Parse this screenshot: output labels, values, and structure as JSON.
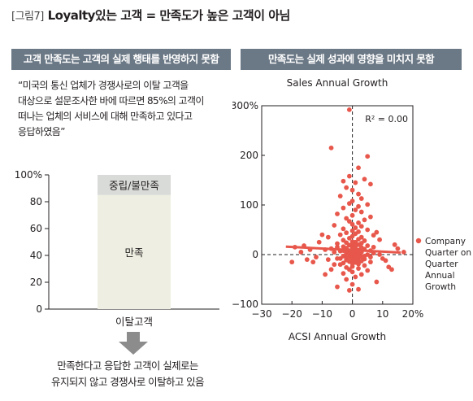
{
  "figure": {
    "label": "[그림7]",
    "title": "Loyalty있는 고객 = 만족도가 높은 고객이 아님"
  },
  "left_panel": {
    "banner": "고객 만족도는 고객의 실제 행태를 반영하지 못함",
    "quote_lines": [
      "“미국의 통신 업체가 경쟁사로의 이탈 고객을",
      "대상으로 설문조사한 바에 따르면 85%의 고객이",
      "떠나는 업체의 서비스에 대해 만족하고 있다고",
      "응답하였음”"
    ],
    "bottom_note_lines": [
      "만족한다고 응답한 고객이 실제로는",
      "유지되지 않고 경쟁사로 이탈하고 있음"
    ],
    "arrow_color": "#8c8c8c"
  },
  "right_panel": {
    "banner": "만족도는 실제 성과에 영향을 미치지 못함"
  },
  "chart_data": [
    {
      "type": "bar",
      "stacked": true,
      "categories": [
        "이탈고객"
      ],
      "series": [
        {
          "name": "만족",
          "values": [
            85
          ],
          "color": "#eeefe2"
        },
        {
          "name": "중립/불만족",
          "values": [
            15
          ],
          "color": "#d9dbd8"
        }
      ],
      "title": "",
      "xlabel": "",
      "ylabel": "",
      "ylim": [
        0,
        100
      ],
      "yticks": [
        0,
        20,
        40,
        60,
        80,
        100
      ],
      "ytick_labels": [
        "0",
        "20",
        "40",
        "60",
        "80",
        "100%"
      ],
      "grid": false
    },
    {
      "type": "scatter",
      "title": "Sales Annual Growth",
      "xlabel": "ACSI Annual Growth",
      "ylabel": "",
      "xlim": [
        -30,
        20
      ],
      "ylim": [
        -100,
        300
      ],
      "xticks": [
        -30,
        -20,
        -10,
        0,
        10,
        20
      ],
      "xtick_labels": [
        "−30",
        "−20",
        "−10",
        "0",
        "10",
        "20%"
      ],
      "yticks": [
        -100,
        0,
        100,
        200,
        300
      ],
      "ytick_labels": [
        "−100",
        "0",
        "100",
        "200",
        "300%"
      ],
      "annotation": "R² = 0.00",
      "legend": {
        "label_lines": [
          "Company",
          "Quarter on",
          "Quarter",
          "Annual",
          "Growth"
        ],
        "placement": "right"
      },
      "marker_color": "#e8574b",
      "trend_line": {
        "x": [
          -22,
          16
        ],
        "y": [
          16,
          4
        ],
        "color": "#e8574b"
      },
      "points": [
        [
          -1,
          292
        ],
        [
          -7,
          215
        ],
        [
          5,
          198
        ],
        [
          2,
          175
        ],
        [
          -1,
          158
        ],
        [
          4,
          152
        ],
        [
          -3,
          148
        ],
        [
          1,
          145
        ],
        [
          6,
          142
        ],
        [
          -2,
          135
        ],
        [
          0,
          130
        ],
        [
          2,
          122
        ],
        [
          -4,
          118
        ],
        [
          3,
          113
        ],
        [
          0,
          108
        ],
        [
          -1,
          103
        ],
        [
          5,
          101
        ],
        [
          2,
          97
        ],
        [
          -3,
          94
        ],
        [
          1,
          90
        ],
        [
          3,
          86
        ],
        [
          -5,
          82
        ],
        [
          0,
          79
        ],
        [
          6,
          76
        ],
        [
          -2,
          73
        ],
        [
          4,
          70
        ],
        [
          -1,
          67
        ],
        [
          2,
          64
        ],
        [
          0,
          61
        ],
        [
          -6,
          59
        ],
        [
          3,
          57
        ],
        [
          1,
          54
        ],
        [
          -3,
          52
        ],
        [
          5,
          50
        ],
        [
          0,
          48
        ],
        [
          2,
          46
        ],
        [
          -2,
          44
        ],
        [
          1,
          42
        ],
        [
          -4,
          40
        ],
        [
          7,
          39
        ],
        [
          0,
          37
        ],
        [
          3,
          35
        ],
        [
          -1,
          33
        ],
        [
          2,
          31
        ],
        [
          -3,
          29
        ],
        [
          4,
          28
        ],
        [
          0,
          26
        ],
        [
          1,
          25
        ],
        [
          -2,
          24
        ],
        [
          3,
          23
        ],
        [
          -5,
          22
        ],
        [
          0,
          21
        ],
        [
          2,
          20
        ],
        [
          -1,
          19
        ],
        [
          5,
          18
        ],
        [
          1,
          17
        ],
        [
          -3,
          16
        ],
        [
          0,
          15
        ],
        [
          3,
          14
        ],
        [
          -2,
          13
        ],
        [
          1,
          12
        ],
        [
          -7,
          12
        ],
        [
          4,
          11
        ],
        [
          0,
          10
        ],
        [
          2,
          9
        ],
        [
          -1,
          8
        ],
        [
          6,
          8
        ],
        [
          -4,
          7
        ],
        [
          1,
          6
        ],
        [
          3,
          5
        ],
        [
          0,
          4
        ],
        [
          -2,
          3
        ],
        [
          2,
          2
        ],
        [
          -1,
          1
        ],
        [
          5,
          0
        ],
        [
          0,
          -1
        ],
        [
          1,
          -2
        ],
        [
          -3,
          -3
        ],
        [
          3,
          -4
        ],
        [
          -1,
          -5
        ],
        [
          2,
          -6
        ],
        [
          0,
          -7
        ],
        [
          -5,
          -8
        ],
        [
          4,
          -9
        ],
        [
          1,
          -10
        ],
        [
          -2,
          -11
        ],
        [
          0,
          -12
        ],
        [
          3,
          -13
        ],
        [
          -1,
          -14
        ],
        [
          6,
          -15
        ],
        [
          1,
          -16
        ],
        [
          -3,
          -17
        ],
        [
          0,
          -18
        ],
        [
          2,
          -19
        ],
        [
          -4,
          -20
        ],
        [
          4,
          -22
        ],
        [
          0,
          -24
        ],
        [
          -2,
          -26
        ],
        [
          2,
          -28
        ],
        [
          -1,
          -30
        ],
        [
          5,
          -32
        ],
        [
          0,
          -35
        ],
        [
          -3,
          -38
        ],
        [
          3,
          -40
        ],
        [
          1,
          -45
        ],
        [
          -2,
          -50
        ],
        [
          8,
          -55
        ],
        [
          0,
          -60
        ],
        [
          -5,
          -65
        ],
        [
          2,
          -70
        ],
        [
          -1,
          -72
        ],
        [
          12,
          -25
        ],
        [
          10,
          -8
        ],
        [
          14,
          20
        ],
        [
          17,
          5
        ],
        [
          9,
          30
        ],
        [
          11,
          -12
        ],
        [
          8,
          45
        ],
        [
          13,
          -30
        ],
        [
          15,
          12
        ],
        [
          -10,
          40
        ],
        [
          -8,
          35
        ],
        [
          -12,
          -5
        ],
        [
          -9,
          10
        ],
        [
          -11,
          25
        ],
        [
          -14,
          10
        ],
        [
          -19,
          15
        ],
        [
          -13,
          -15
        ],
        [
          -16,
          18
        ],
        [
          -7,
          -30
        ],
        [
          -9,
          -40
        ],
        [
          -15,
          -10
        ],
        [
          -17,
          5
        ],
        [
          -6,
          -20
        ],
        [
          -8,
          -10
        ],
        [
          -20,
          -15
        ],
        [
          9,
          0
        ],
        [
          7,
          15
        ],
        [
          -6,
          5
        ],
        [
          -5,
          15
        ],
        [
          6,
          -5
        ],
        [
          7,
          3
        ],
        [
          -4,
          -8
        ],
        [
          -3,
          8
        ],
        [
          4,
          -3
        ],
        [
          3,
          14
        ],
        [
          -2,
          -6
        ],
        [
          2,
          -12
        ],
        [
          0,
          3
        ],
        [
          1,
          -4
        ]
      ]
    }
  ]
}
